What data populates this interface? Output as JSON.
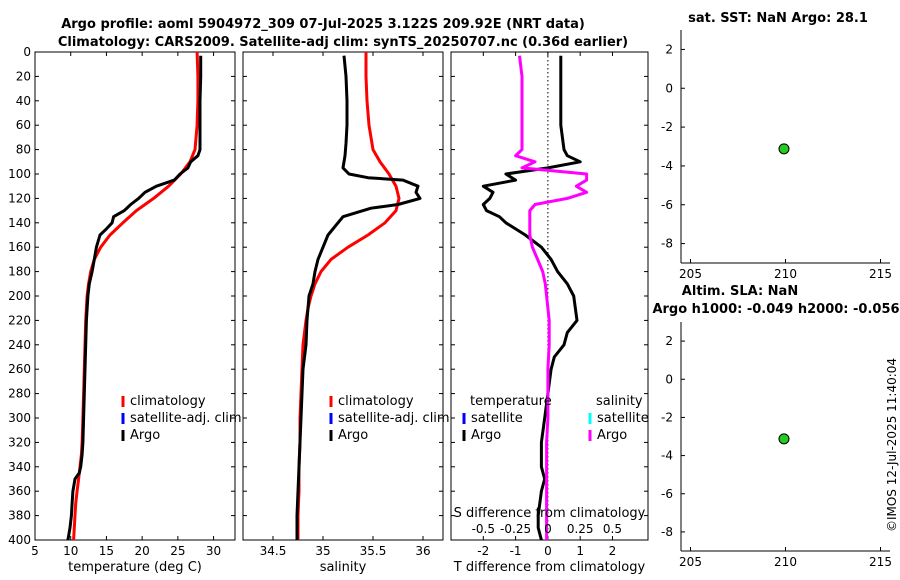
{
  "figure": {
    "title_line1": "Argo profile: aoml 5904972_309 07-Jul-2025 3.122S 209.92E (NRT data)",
    "title_line2": "Climatology: CARS2009. Satellite-adj clim: synTS_20250707.nc (0.36d earlier)",
    "stamp": "©IMOS 12-Jul-2025 11:40:04",
    "colors": {
      "climatology": "#ff0000",
      "satellite": "#0000ff",
      "satellite_salinity": "#00ffff",
      "argo": "#000000",
      "argo_salinity": "#ff00ff",
      "marker": "#22cc22"
    }
  },
  "chart_data": [
    {
      "id": "temperature",
      "type": "line",
      "xlabel": "temperature (deg C)",
      "ylabel": "",
      "xlim": [
        5,
        33
      ],
      "ylim": [
        400,
        0
      ],
      "xticks": [
        "5",
        "10",
        "15",
        "20",
        "25",
        "30"
      ],
      "yticks": [
        "0",
        "20",
        "40",
        "60",
        "80",
        "100",
        "120",
        "140",
        "160",
        "180",
        "200",
        "220",
        "240",
        "260",
        "280",
        "300",
        "320",
        "340",
        "360",
        "380",
        "400"
      ],
      "legend": [
        "climatology",
        "satellite-adj. clim",
        "Argo"
      ],
      "series": [
        {
          "name": "climatology",
          "color": "#ff0000",
          "x": [
            27.7,
            27.8,
            27.8,
            27.7,
            27.4,
            26.7,
            25.4,
            23.7,
            21.6,
            19.2,
            17.3,
            15.5,
            14.2,
            13.3,
            12.8,
            12.5,
            12.3,
            12.2,
            12.1,
            12.0,
            11.9,
            11.8,
            11.7,
            11.6,
            11.5,
            11.3,
            11.1,
            10.9,
            10.7,
            10.6,
            10.4
          ],
          "y": [
            0,
            20,
            40,
            60,
            80,
            90,
            100,
            110,
            120,
            130,
            140,
            150,
            160,
            170,
            180,
            190,
            200,
            210,
            220,
            240,
            260,
            280,
            300,
            320,
            330,
            340,
            350,
            360,
            370,
            380,
            400
          ]
        },
        {
          "name": "Argo",
          "color": "#000000",
          "x": [
            28.2,
            28.2,
            28.1,
            28.1,
            28.1,
            27.8,
            26.8,
            26.4,
            25.3,
            24.5,
            22.0,
            20.4,
            19.5,
            18.4,
            17.5,
            16.0,
            15.8,
            15.0,
            14.1,
            13.6,
            13.3,
            13.0,
            12.6,
            12.4,
            12.2,
            12.1,
            12.0,
            11.9,
            11.8,
            11.7,
            11.6,
            11.4,
            11.2,
            10.6,
            10.3,
            10.2,
            10.1,
            9.9,
            9.6
          ],
          "y": [
            3,
            20,
            40,
            60,
            80,
            85,
            90,
            95,
            100,
            105,
            110,
            115,
            120,
            125,
            130,
            135,
            140,
            145,
            150,
            160,
            170,
            180,
            190,
            200,
            220,
            240,
            260,
            280,
            300,
            320,
            330,
            340,
            345,
            350,
            360,
            370,
            380,
            390,
            400
          ]
        }
      ]
    },
    {
      "id": "salinity",
      "type": "line",
      "xlabel": "salinity",
      "ylabel": "",
      "xlim": [
        34.2,
        36.2
      ],
      "ylim": [
        400,
        0
      ],
      "xticks": [
        "34.5",
        "35",
        "35.5",
        "36"
      ],
      "legend": [
        "climatology",
        "satellite-adj. clim",
        "Argo"
      ],
      "series": [
        {
          "name": "climatology",
          "color": "#ff0000",
          "x": [
            35.43,
            35.43,
            35.44,
            35.46,
            35.5,
            35.57,
            35.66,
            35.73,
            35.76,
            35.73,
            35.62,
            35.45,
            35.25,
            35.08,
            34.98,
            34.92,
            34.88,
            34.85,
            34.83,
            34.8,
            34.79,
            34.78,
            34.77,
            34.77,
            34.76,
            34.76,
            34.75,
            34.75
          ],
          "y": [
            0,
            20,
            40,
            60,
            80,
            90,
            100,
            110,
            120,
            130,
            140,
            150,
            160,
            170,
            180,
            190,
            200,
            210,
            220,
            240,
            260,
            280,
            300,
            320,
            340,
            360,
            380,
            400
          ]
        },
        {
          "name": "Argo",
          "color": "#000000",
          "x": [
            35.21,
            35.23,
            35.24,
            35.24,
            35.23,
            35.22,
            35.2,
            35.26,
            35.45,
            35.8,
            35.95,
            35.93,
            35.97,
            35.75,
            35.48,
            35.2,
            35.05,
            35.0,
            34.95,
            34.92,
            34.9,
            34.86,
            34.84,
            34.83,
            34.8,
            34.79,
            34.78,
            34.77,
            34.76,
            34.75,
            34.74,
            34.74
          ],
          "y": [
            3,
            20,
            40,
            60,
            75,
            85,
            95,
            100,
            103,
            105,
            110,
            115,
            120,
            125,
            128,
            135,
            150,
            160,
            170,
            180,
            190,
            200,
            220,
            240,
            260,
            280,
            300,
            320,
            340,
            360,
            380,
            400
          ]
        }
      ]
    },
    {
      "id": "difference",
      "type": "line",
      "xlabel": "T difference from climatology",
      "xlabel_top": "S difference from climatology",
      "ylabel": "",
      "xlim": [
        -3,
        3.1
      ],
      "ylim": [
        400,
        0
      ],
      "xticks": [
        "-2",
        "-1",
        "0",
        "1",
        "2"
      ],
      "s_xlim": [
        -0.75,
        0.775
      ],
      "s_xticks": [
        "-0.5",
        "-0.25",
        "0",
        "0.25",
        "0.5"
      ],
      "legend_left_header": "temperature",
      "legend_right_header": "salinity",
      "legend_left": [
        "satellite",
        "Argo"
      ],
      "legend_right": [
        "satellite",
        "Argo"
      ],
      "series": [
        {
          "name": "T Argo",
          "color": "#000000",
          "axis": "T",
          "x": [
            0.4,
            0.4,
            0.4,
            0.4,
            0.5,
            0.6,
            1.0,
            0.0,
            -1.3,
            -1.0,
            -2.0,
            -1.7,
            -1.8,
            -2.0,
            -1.9,
            -1.5,
            -1.3,
            -1.0,
            -0.7,
            -0.2,
            0.1,
            0.3,
            0.6,
            0.8,
            0.9,
            0.6,
            0.5,
            0.2,
            0.1,
            0.0,
            -0.1,
            -0.2,
            -0.2,
            -0.1,
            -0.2,
            -0.3,
            -0.3,
            -0.2
          ],
          "y": [
            3,
            20,
            40,
            60,
            80,
            85,
            90,
            95,
            100,
            105,
            110,
            115,
            120,
            125,
            130,
            135,
            140,
            145,
            150,
            160,
            170,
            180,
            190,
            200,
            220,
            230,
            240,
            250,
            260,
            280,
            300,
            320,
            340,
            350,
            360,
            380,
            390,
            400
          ]
        },
        {
          "name": "S Argo",
          "color": "#ff00ff",
          "axis": "S",
          "x": [
            -0.22,
            -0.2,
            -0.2,
            -0.2,
            -0.2,
            -0.25,
            -0.1,
            -0.2,
            0.3,
            0.3,
            0.22,
            0.3,
            0.15,
            -0.1,
            -0.14,
            -0.14,
            -0.14,
            -0.12,
            -0.08,
            -0.04,
            -0.02,
            -0.01,
            0.01,
            0.01,
            0.0,
            0.0,
            0.0,
            -0.01,
            -0.01,
            -0.01,
            -0.01
          ],
          "y": [
            3,
            20,
            40,
            60,
            80,
            85,
            90,
            95,
            100,
            105,
            110,
            115,
            120,
            125,
            130,
            140,
            150,
            160,
            170,
            180,
            190,
            200,
            220,
            240,
            260,
            280,
            300,
            320,
            340,
            380,
            400
          ]
        }
      ]
    },
    {
      "id": "sst",
      "type": "scatter",
      "title": "sat. SST: NaN Argo: 28.1",
      "xlim": [
        204.5,
        215.5
      ],
      "ylim": [
        -9,
        3
      ],
      "xticks": [
        "205",
        "210",
        "215"
      ],
      "yticks": [
        "2",
        "0",
        "-2",
        "-4",
        "-6",
        "-8"
      ],
      "points": [
        {
          "x": 209.92,
          "y": -3.122
        }
      ]
    },
    {
      "id": "sla",
      "type": "scatter",
      "title": "Altim. SLA: NaN",
      "subtitle": "Argo h1000: -0.049 h2000: -0.056",
      "xlim": [
        204.5,
        215.5
      ],
      "ylim": [
        -9,
        3
      ],
      "xticks": [
        "205",
        "210",
        "215"
      ],
      "yticks": [
        "2",
        "0",
        "-2",
        "-4",
        "-6",
        "-8"
      ],
      "points": [
        {
          "x": 209.92,
          "y": -3.122
        }
      ]
    }
  ]
}
